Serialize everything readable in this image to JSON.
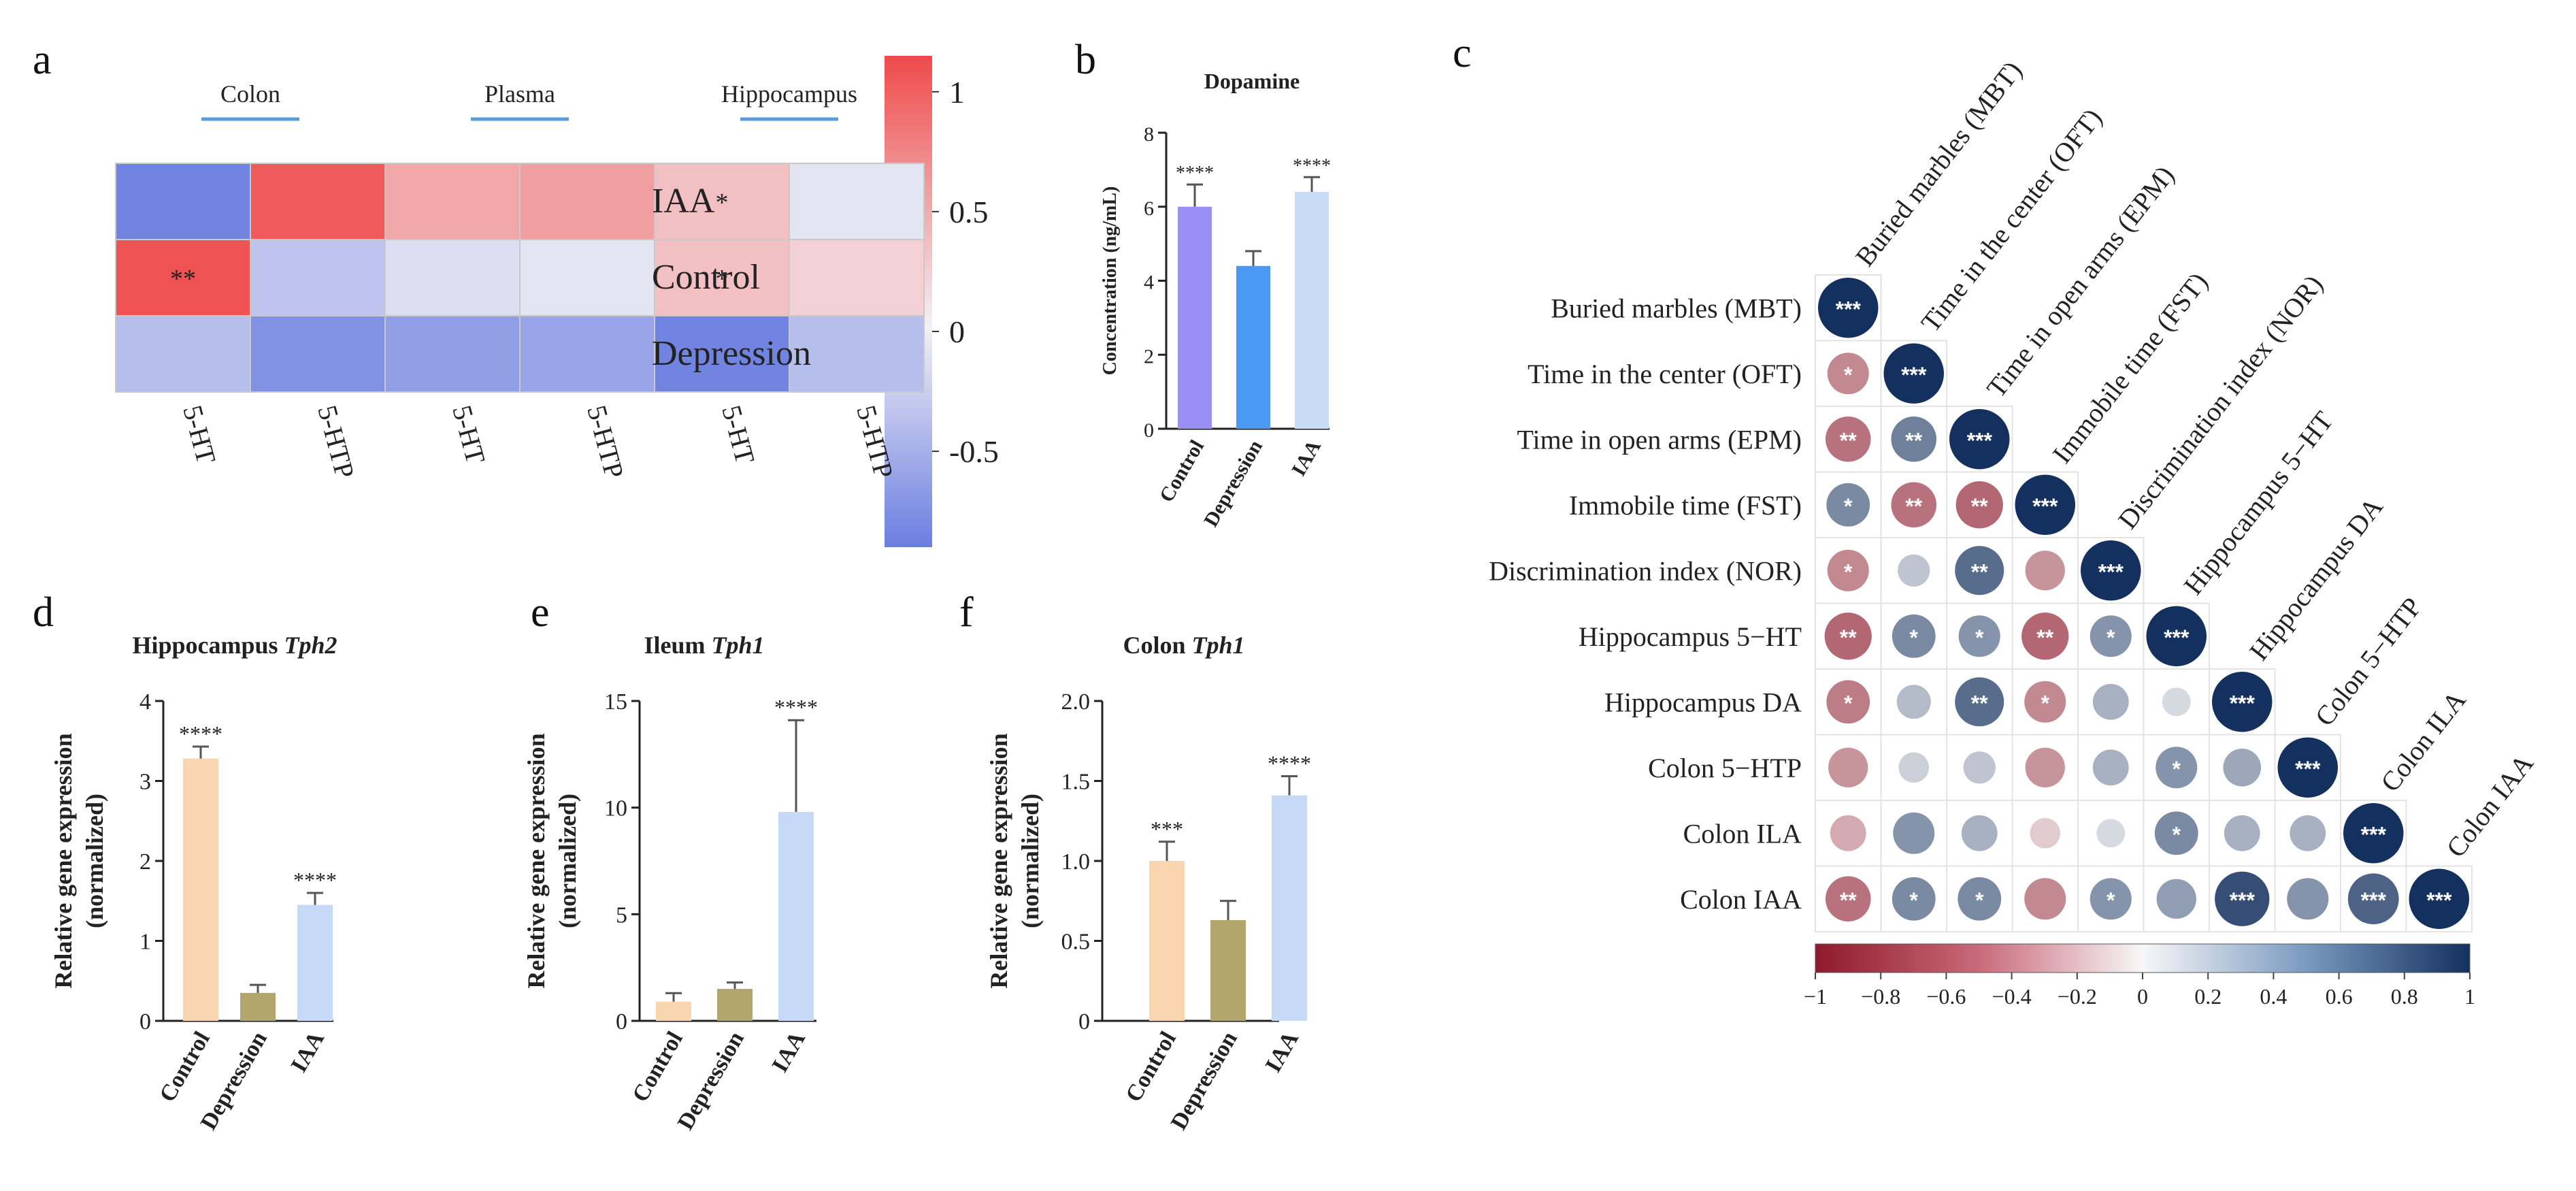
{
  "panels": {
    "a": "a",
    "b": "b",
    "c": "c",
    "d": "d",
    "e": "e",
    "f": "f"
  },
  "colors": {
    "pos_red": "#ef4a4a",
    "neg_blue": "#6a7ee0",
    "corr_neg": "#8e1a2b",
    "corr_pos": "#14305e",
    "orange": "#f9d5b0",
    "olive": "#b3a66c",
    "lightblue": "#c6daf7",
    "purple": "#9a8ff5",
    "blue": "#4a9af3",
    "pale_blue": "#c9dcf7"
  },
  "chart_data": [
    {
      "id": "a",
      "type": "heatmap",
      "group_labels": [
        "Colon",
        "Plasma",
        "Hippocampus"
      ],
      "rows": [
        "IAA",
        "Control",
        "Depression"
      ],
      "columns": [
        "5-HT",
        "5-HTP",
        "5-HT",
        "5-HTP",
        "5-HT",
        "5-HTP"
      ],
      "values": [
        [
          -0.85,
          0.9,
          0.45,
          0.5,
          0.3,
          -0.1
        ],
        [
          0.95,
          -0.35,
          -0.15,
          -0.1,
          0.3,
          0.2
        ],
        [
          -0.4,
          -0.75,
          -0.65,
          -0.6,
          -0.85,
          -0.4
        ]
      ],
      "stars": [
        [
          "",
          "",
          "",
          "",
          "*",
          ""
        ],
        [
          "**",
          "",
          "",
          "",
          "*",
          ""
        ],
        [
          "",
          "",
          "",
          "",
          "",
          ""
        ]
      ],
      "colorbar": {
        "range": [
          -0.9,
          1.15
        ],
        "ticks": [
          1,
          0.5,
          0,
          -0.5
        ],
        "tick_labels": [
          "1",
          "0.5",
          "0",
          "-0.5"
        ]
      }
    },
    {
      "id": "b",
      "type": "bar",
      "title": "Dopamine",
      "ylabel": "Concentration (ng/mL)",
      "categories": [
        "Control",
        "Depression",
        "IAA"
      ],
      "values": [
        6.0,
        4.4,
        6.4
      ],
      "errors": [
        0.6,
        0.4,
        0.4
      ],
      "annotations": [
        "****",
        "",
        "****"
      ],
      "ylim": [
        0,
        8
      ],
      "yticks": [
        0,
        2,
        4,
        6,
        8
      ],
      "ytick_labels": [
        "0",
        "2",
        "4",
        "6",
        "8"
      ]
    },
    {
      "id": "c",
      "type": "heatmap",
      "subtype": "correlation",
      "labels": [
        "Buried marbles (MBT)",
        "Time in the center (OFT)",
        "Time in open arms (EPM)",
        "Immobile time (FST)",
        "Discrimination index (NOR)",
        "Hippocampus 5−HT",
        "Hippocampus DA",
        "Colon 5−HTP",
        "Colon ILA",
        "Colon IAA"
      ],
      "values": [
        [
          1
        ],
        [
          -0.5,
          1
        ],
        [
          -0.6,
          0.6,
          1
        ],
        [
          0.55,
          -0.6,
          -0.65,
          1
        ],
        [
          -0.5,
          0.25,
          0.7,
          -0.45,
          1
        ],
        [
          -0.65,
          0.55,
          0.5,
          -0.65,
          0.5,
          1
        ],
        [
          -0.55,
          0.3,
          0.7,
          -0.5,
          0.35,
          0.15,
          1
        ],
        [
          -0.45,
          0.2,
          0.25,
          -0.45,
          0.35,
          0.5,
          0.4,
          1
        ],
        [
          -0.35,
          0.5,
          0.35,
          -0.2,
          0.15,
          0.55,
          0.35,
          0.35,
          1
        ],
        [
          -0.6,
          0.55,
          0.55,
          -0.5,
          0.5,
          0.45,
          0.85,
          0.5,
          0.75,
          1
        ]
      ],
      "stars": [
        [
          "***"
        ],
        [
          "*",
          "***"
        ],
        [
          "**",
          "**",
          "***"
        ],
        [
          "*",
          "**",
          "**",
          "***"
        ],
        [
          "*",
          "",
          "**",
          "",
          "***"
        ],
        [
          "**",
          "*",
          "*",
          "**",
          "*",
          "***"
        ],
        [
          "*",
          "",
          "**",
          "*",
          "",
          "",
          "***"
        ],
        [
          "",
          "",
          "",
          "",
          "",
          "*",
          "",
          "***"
        ],
        [
          "",
          "",
          "",
          "",
          "",
          "*",
          "",
          "",
          "***"
        ],
        [
          "**",
          "*",
          "*",
          "",
          "*",
          "",
          "***",
          "",
          "***",
          "***"
        ]
      ],
      "colorbar": {
        "range": [
          -1,
          1
        ],
        "ticks": [
          -1,
          -0.8,
          -0.6,
          -0.4,
          -0.2,
          0,
          0.2,
          0.4,
          0.6,
          0.8,
          1
        ],
        "tick_labels": [
          "−1",
          "−0.8",
          "−0.6",
          "−0.4",
          "−0.2",
          "0",
          "0.2",
          "0.4",
          "0.6",
          "0.8",
          "1"
        ]
      }
    },
    {
      "id": "d",
      "type": "bar",
      "title_plain": "Hippocampus ",
      "title_italic": "Tph2",
      "ylabel_lines": [
        "Relative gene expression",
        "(normalized)"
      ],
      "categories": [
        "Control",
        "Depression",
        "IAA"
      ],
      "values": [
        3.28,
        0.35,
        1.45
      ],
      "errors": [
        0.15,
        0.1,
        0.15
      ],
      "annotations": [
        "****",
        "",
        "****"
      ],
      "ylim": [
        0,
        4
      ],
      "yticks": [
        0,
        1,
        2,
        3,
        4
      ],
      "ytick_labels": [
        "0",
        "1",
        "2",
        "3",
        "4"
      ]
    },
    {
      "id": "e",
      "type": "bar",
      "title_plain": "Ileum ",
      "title_italic": "Tph1",
      "ylabel_lines": [
        "Relative gene expression",
        "(normalized)"
      ],
      "categories": [
        "Control",
        "Depression",
        "IAA"
      ],
      "values": [
        0.9,
        1.5,
        9.8
      ],
      "errors": [
        0.4,
        0.3,
        4.3
      ],
      "annotations": [
        "",
        "",
        "****"
      ],
      "ylim": [
        0,
        15
      ],
      "yticks": [
        0,
        5,
        10,
        15
      ],
      "ytick_labels": [
        "0",
        "5",
        "10",
        "15"
      ]
    },
    {
      "id": "f",
      "type": "bar",
      "title_plain": "Colon ",
      "title_italic": "Tph1",
      "ylabel_lines": [
        "Relative gene expression",
        "(normalized)"
      ],
      "categories": [
        "Control",
        "Depression",
        "IAA"
      ],
      "values": [
        1.0,
        0.63,
        1.41
      ],
      "errors": [
        0.12,
        0.12,
        0.12
      ],
      "annotations": [
        "***",
        "",
        "****"
      ],
      "ylim": [
        0,
        2.0
      ],
      "yticks": [
        0,
        0.5,
        1.0,
        1.5,
        2.0
      ],
      "ytick_labels": [
        "0",
        "0.5",
        "1.0",
        "1.5",
        "2.0"
      ]
    }
  ]
}
